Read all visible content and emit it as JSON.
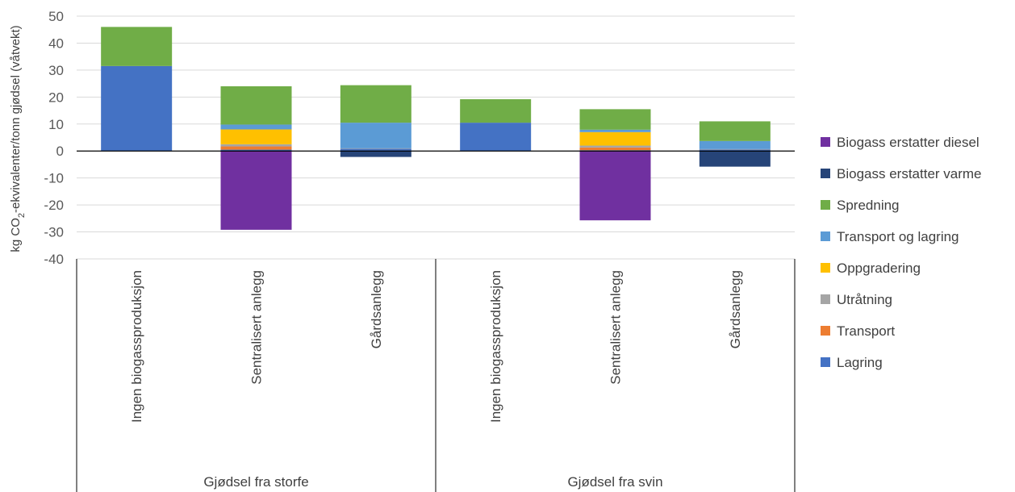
{
  "chart_data": {
    "type": "bar",
    "stacked": true,
    "ylabel_parts": {
      "pre": "kg CO",
      "sub": "2",
      "post": "-ekvivalenter/tonn gjødsel (våtvekt)"
    },
    "ylim": [
      -40,
      50
    ],
    "yticks": [
      50,
      40,
      30,
      20,
      10,
      0,
      -10,
      -20,
      -30,
      -40
    ],
    "grid": true,
    "legend_position": "right",
    "groups": [
      {
        "label": "Gjødsel fra storfe",
        "categories": [
          "Ingen biogassproduksjon",
          "Sentralisert anlegg",
          "Gårdsanlegg"
        ]
      },
      {
        "label": "Gjødsel fra svin",
        "categories": [
          "Ingen biogassproduksjon",
          "Sentralisert anlegg",
          "Gårdsanlegg"
        ]
      }
    ],
    "series": [
      {
        "name": "Lagring",
        "color": "#4472C4",
        "values": [
          31.5,
          0.5,
          0.8,
          10.5,
          0.3,
          0.5
        ]
      },
      {
        "name": "Transport",
        "color": "#ED7D31",
        "values": [
          0,
          1.2,
          0,
          0,
          1.0,
          0
        ]
      },
      {
        "name": "Utråtning",
        "color": "#A5A5A5",
        "values": [
          0,
          0.8,
          0.2,
          0,
          0.7,
          0.2
        ]
      },
      {
        "name": "Oppgradering",
        "color": "#FFC000",
        "values": [
          0,
          5.5,
          0,
          0,
          5.0,
          0
        ]
      },
      {
        "name": "Transport og lagring",
        "color": "#5B9BD5",
        "values": [
          0,
          1.8,
          9.5,
          0,
          0.9,
          3.0
        ]
      },
      {
        "name": "Spredning",
        "color": "#70AD47",
        "values": [
          14.5,
          14.2,
          13.9,
          8.7,
          7.6,
          7.3
        ]
      },
      {
        "name": "Biogass erstatter varme",
        "color": "#264478",
        "values": [
          0,
          0,
          -2.2,
          0,
          0,
          -5.8
        ]
      },
      {
        "name": "Biogass erstatter diesel",
        "color": "#7030A0",
        "values": [
          0,
          -29.2,
          0,
          0,
          -25.7,
          0
        ]
      }
    ]
  }
}
